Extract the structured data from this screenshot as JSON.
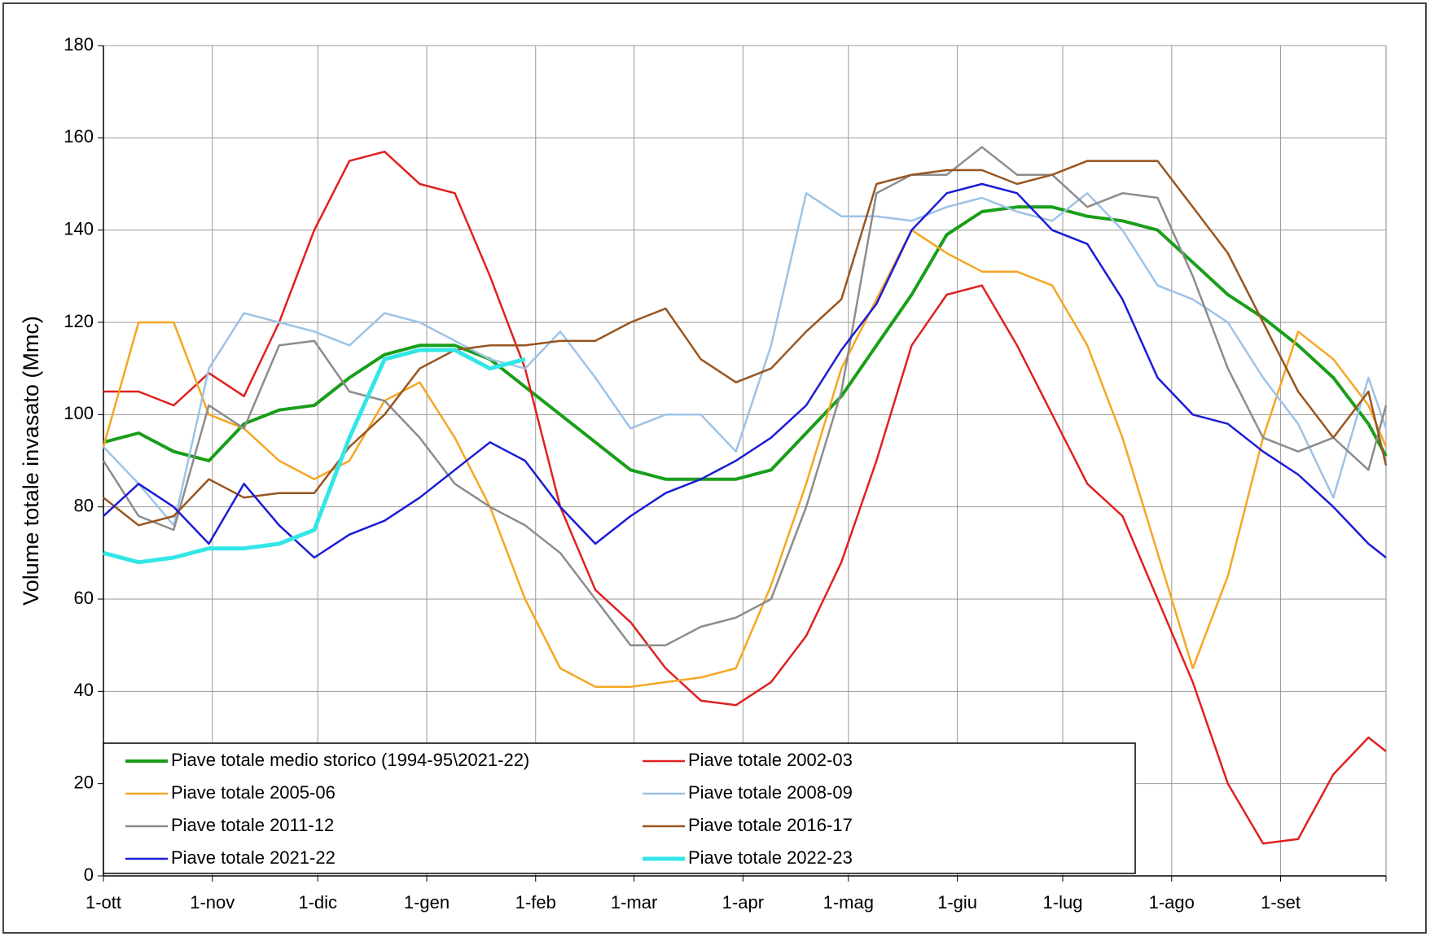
{
  "chart_data": {
    "type": "line",
    "y_label": "Volume totale invasato (Mmc)",
    "x": [
      0,
      10,
      20,
      30,
      40,
      50,
      60,
      70,
      80,
      90,
      100,
      110,
      120,
      130,
      140,
      150,
      160,
      170,
      180,
      190,
      200,
      210,
      220,
      230,
      240,
      250,
      260,
      270,
      280,
      290,
      300,
      310,
      320,
      330,
      340,
      350,
      360,
      365
    ],
    "xlim": [
      0,
      365
    ],
    "xticks": [
      {
        "value": 0,
        "label": "1-ott"
      },
      {
        "value": 31,
        "label": "1-nov"
      },
      {
        "value": 61,
        "label": "1-dic"
      },
      {
        "value": 92,
        "label": "1-gen"
      },
      {
        "value": 123,
        "label": "1-feb"
      },
      {
        "value": 151,
        "label": "1-mar"
      },
      {
        "value": 182,
        "label": "1-apr"
      },
      {
        "value": 212,
        "label": "1-mag"
      },
      {
        "value": 243,
        "label": "1-giu"
      },
      {
        "value": 273,
        "label": "1-lug"
      },
      {
        "value": 304,
        "label": "1-ago"
      },
      {
        "value": 335,
        "label": "1-set"
      }
    ],
    "ylim": [
      0,
      180
    ],
    "yticks": [
      0,
      20,
      40,
      60,
      80,
      100,
      120,
      140,
      160,
      180
    ],
    "grid": true,
    "series": [
      {
        "name": "Piave totale medio storico  (1994-95\\2021-22)",
        "color": "#1a9e1a",
        "width": 4,
        "values": [
          94,
          96,
          92,
          90,
          98,
          101,
          102,
          108,
          113,
          115,
          115,
          112,
          106,
          100,
          94,
          88,
          86,
          86,
          86,
          88,
          96,
          104,
          115,
          126,
          139,
          144,
          145,
          145,
          143,
          142,
          140,
          133,
          126,
          121,
          115,
          108,
          98,
          91
        ]
      },
      {
        "name": "Piave totale 2002-03",
        "color": "#e02020",
        "width": 2.5,
        "values": [
          105,
          105,
          102,
          109,
          104,
          120,
          140,
          155,
          157,
          150,
          148,
          130,
          110,
          80,
          62,
          55,
          45,
          38,
          37,
          42,
          52,
          68,
          90,
          115,
          126,
          128,
          115,
          100,
          85,
          78,
          60,
          42,
          20,
          7,
          8,
          22,
          30,
          27
        ]
      },
      {
        "name": "Piave totale 2005-06",
        "color": "#f5a623",
        "width": 2.5,
        "values": [
          93,
          120,
          120,
          100,
          97,
          90,
          86,
          90,
          103,
          107,
          95,
          80,
          60,
          45,
          41,
          41,
          42,
          43,
          45,
          63,
          85,
          110,
          125,
          140,
          135,
          131,
          131,
          128,
          115,
          95,
          70,
          45,
          65,
          95,
          118,
          112,
          102,
          93
        ]
      },
      {
        "name": "Piave totale 2008-09",
        "color": "#9dc3e6",
        "width": 2.5,
        "values": [
          93,
          85,
          76,
          110,
          122,
          120,
          118,
          115,
          122,
          120,
          116,
          112,
          110,
          118,
          108,
          97,
          100,
          100,
          92,
          115,
          148,
          143,
          143,
          142,
          145,
          147,
          144,
          142,
          148,
          140,
          128,
          125,
          120,
          108,
          98,
          82,
          108,
          97
        ]
      },
      {
        "name": "Piave totale 2011-12",
        "color": "#8c8c8c",
        "width": 2.5,
        "values": [
          90,
          78,
          75,
          102,
          97,
          115,
          116,
          105,
          103,
          95,
          85,
          80,
          76,
          70,
          60,
          50,
          50,
          54,
          56,
          60,
          80,
          105,
          148,
          152,
          152,
          158,
          152,
          152,
          145,
          148,
          147,
          130,
          110,
          95,
          92,
          95,
          88,
          102
        ]
      },
      {
        "name": "Piave totale 2016-17",
        "color": "#99551f",
        "width": 2.5,
        "values": [
          82,
          76,
          78,
          86,
          82,
          83,
          83,
          93,
          100,
          110,
          114,
          115,
          115,
          116,
          116,
          120,
          123,
          112,
          107,
          110,
          118,
          125,
          150,
          152,
          153,
          153,
          150,
          152,
          155,
          155,
          155,
          145,
          135,
          120,
          105,
          95,
          105,
          89
        ]
      },
      {
        "name": "Piave totale 2021-22",
        "color": "#1c1cd6",
        "width": 2.5,
        "values": [
          78,
          85,
          80,
          72,
          85,
          76,
          69,
          74,
          77,
          82,
          88,
          94,
          90,
          80,
          72,
          78,
          83,
          86,
          90,
          95,
          102,
          114,
          124,
          140,
          148,
          150,
          148,
          140,
          137,
          125,
          108,
          100,
          98,
          92,
          87,
          80,
          72,
          69
        ]
      },
      {
        "name": "Piave totale 2022-23",
        "color": "#33e6e6",
        "width": 5,
        "values": [
          70,
          68,
          69,
          71,
          71,
          72,
          75,
          95,
          112,
          114,
          114,
          110,
          112,
          null,
          null,
          null,
          null,
          null,
          null,
          null,
          null,
          null,
          null,
          null,
          null,
          null,
          null,
          null,
          null,
          null,
          null,
          null,
          null,
          null,
          null,
          null,
          null,
          null
        ]
      }
    ]
  }
}
